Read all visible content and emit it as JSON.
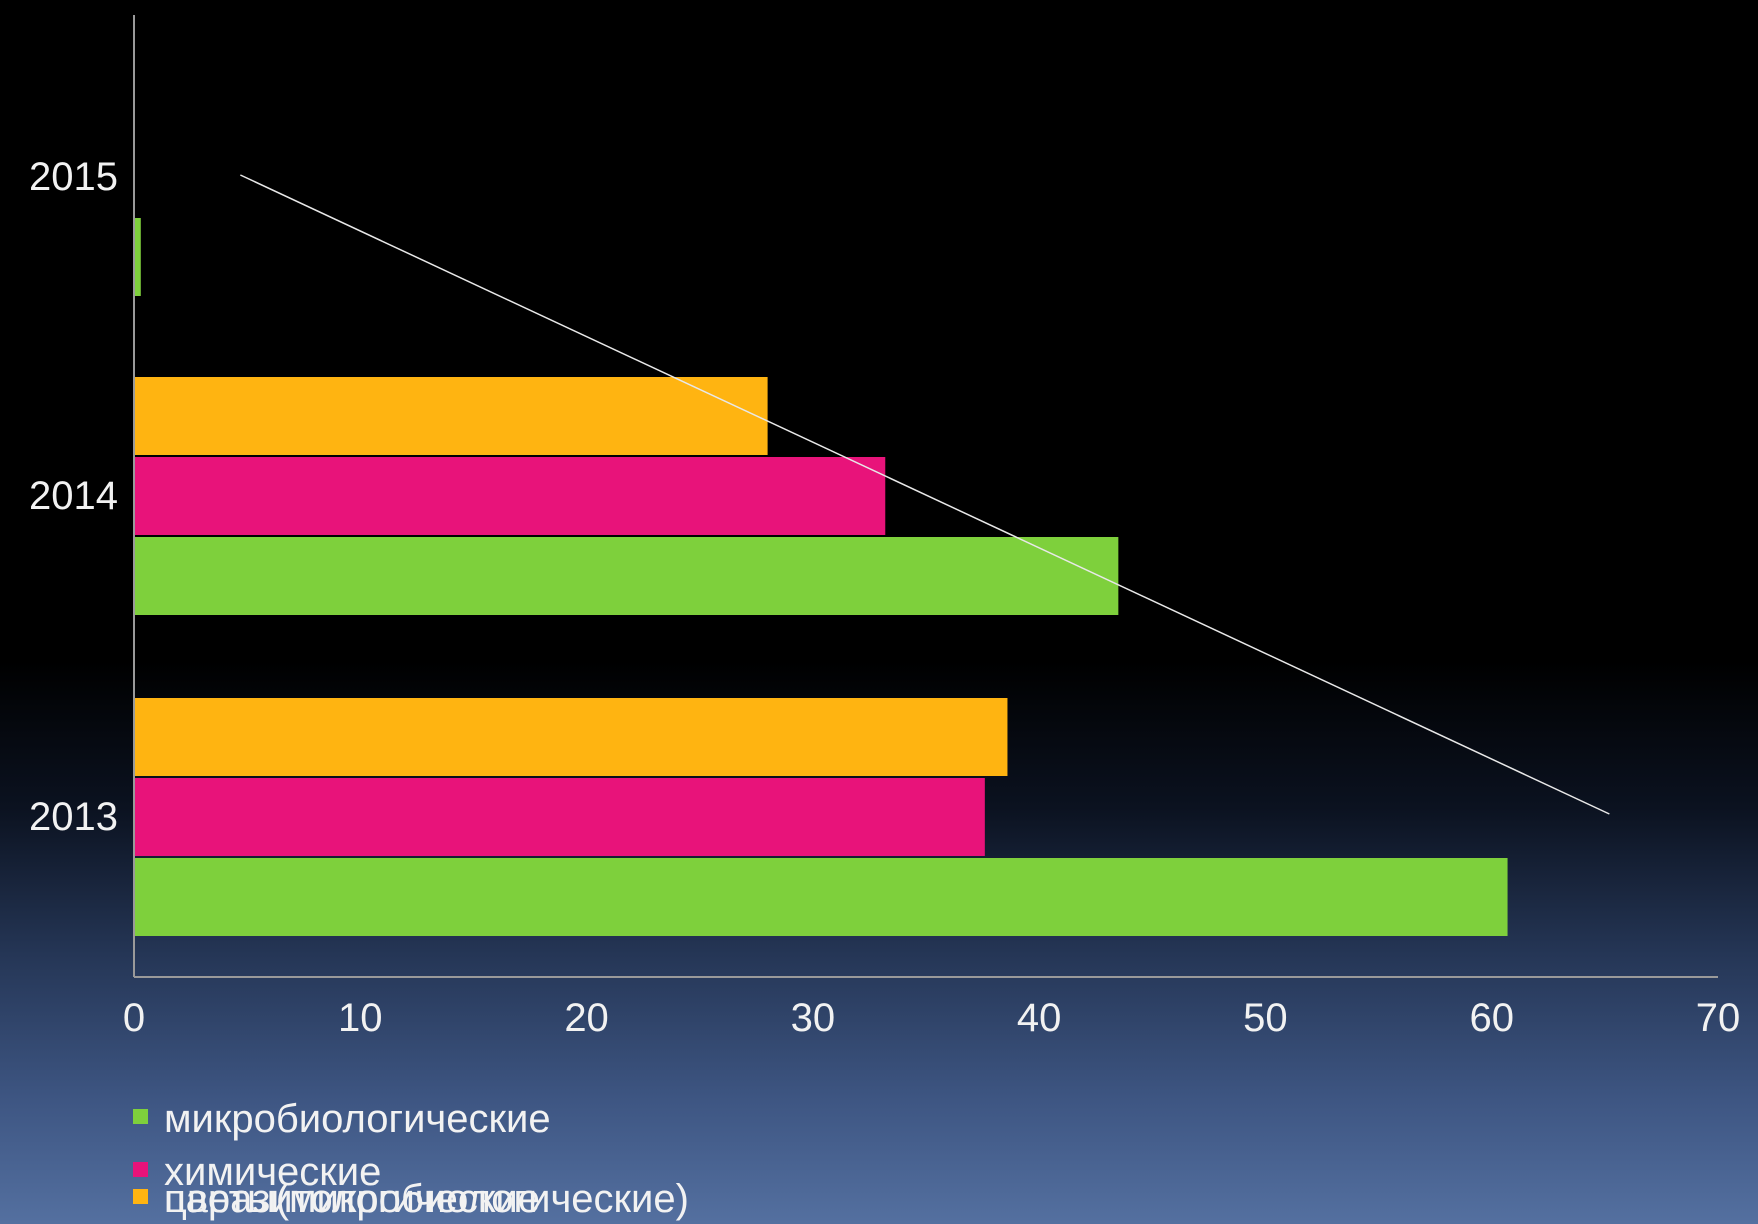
{
  "chart_data": {
    "type": "bar",
    "orientation": "horizontal",
    "categories": [
      "2013",
      "2014",
      "2015"
    ],
    "series": [
      {
        "name": "микробиологические",
        "color": "#7ed03c",
        "values": [
          60.7,
          43.5,
          0.3
        ]
      },
      {
        "name": "химические",
        "color": "#e8137a",
        "values": [
          37.6,
          33.2,
          0
        ]
      },
      {
        "name": "паразитологические",
        "color": "#ffb411",
        "values": [
          38.6,
          28.0,
          0
        ]
      }
    ],
    "x_ticks": [
      "0",
      "10",
      "20",
      "30",
      "40",
      "50",
      "60",
      "70"
    ],
    "xlim": [
      0,
      70
    ],
    "trendline": {
      "from": [
        4.7,
        2015
      ],
      "to": [
        65.2,
        2013
      ]
    },
    "legend_overlap_text": "цветы(микробиологические)",
    "legend_placement": "bottom-left",
    "grid": false
  }
}
